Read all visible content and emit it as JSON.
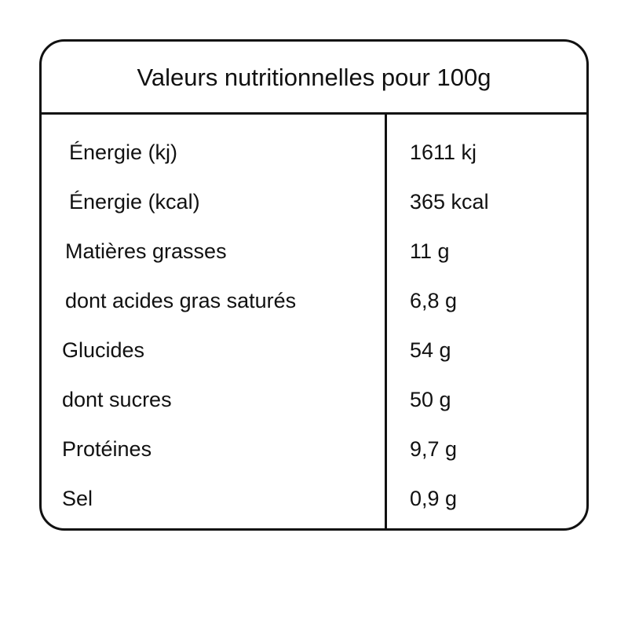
{
  "title": "Valeurs nutritionnelles pour 100g",
  "rows": [
    {
      "label": "Énergie (kj)",
      "value": "1611 kj"
    },
    {
      "label": "Énergie (kcal)",
      "value": "365 kcal"
    },
    {
      "label": "Matières grasses",
      "value": "11 g"
    },
    {
      "label": "dont acides gras saturés",
      "value": "6,8 g"
    },
    {
      "label": "Glucides",
      "value": "54 g"
    },
    {
      "label": "dont sucres",
      "value": "50 g"
    },
    {
      "label": "Protéines",
      "value": "9,7 g"
    },
    {
      "label": "Sel",
      "value": "0,9 g"
    }
  ]
}
